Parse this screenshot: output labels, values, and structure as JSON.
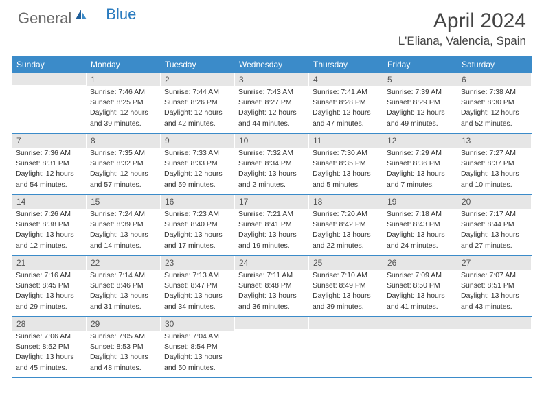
{
  "brand": {
    "part1": "General",
    "part2": "Blue"
  },
  "title": "April 2024",
  "location": "L'Eliana, Valencia, Spain",
  "colors": {
    "header_bg": "#3b8bc9",
    "header_fg": "#ffffff",
    "daynum_bg": "#e6e6e6",
    "daynum_fg": "#555555",
    "text": "#333333",
    "brand_gray": "#6a6a6a",
    "brand_blue": "#2a7bbf",
    "border": "#3b8bc9"
  },
  "typography": {
    "month_title_size": 30,
    "location_size": 17,
    "dow_size": 12,
    "daynum_size": 12,
    "info_size": 10.5
  },
  "dow": [
    "Sunday",
    "Monday",
    "Tuesday",
    "Wednesday",
    "Thursday",
    "Friday",
    "Saturday"
  ],
  "weeks": [
    [
      {
        "n": "",
        "lines": [
          "",
          "",
          "",
          ""
        ]
      },
      {
        "n": "1",
        "lines": [
          "Sunrise: 7:46 AM",
          "Sunset: 8:25 PM",
          "Daylight: 12 hours",
          "and 39 minutes."
        ]
      },
      {
        "n": "2",
        "lines": [
          "Sunrise: 7:44 AM",
          "Sunset: 8:26 PM",
          "Daylight: 12 hours",
          "and 42 minutes."
        ]
      },
      {
        "n": "3",
        "lines": [
          "Sunrise: 7:43 AM",
          "Sunset: 8:27 PM",
          "Daylight: 12 hours",
          "and 44 minutes."
        ]
      },
      {
        "n": "4",
        "lines": [
          "Sunrise: 7:41 AM",
          "Sunset: 8:28 PM",
          "Daylight: 12 hours",
          "and 47 minutes."
        ]
      },
      {
        "n": "5",
        "lines": [
          "Sunrise: 7:39 AM",
          "Sunset: 8:29 PM",
          "Daylight: 12 hours",
          "and 49 minutes."
        ]
      },
      {
        "n": "6",
        "lines": [
          "Sunrise: 7:38 AM",
          "Sunset: 8:30 PM",
          "Daylight: 12 hours",
          "and 52 minutes."
        ]
      }
    ],
    [
      {
        "n": "7",
        "lines": [
          "Sunrise: 7:36 AM",
          "Sunset: 8:31 PM",
          "Daylight: 12 hours",
          "and 54 minutes."
        ]
      },
      {
        "n": "8",
        "lines": [
          "Sunrise: 7:35 AM",
          "Sunset: 8:32 PM",
          "Daylight: 12 hours",
          "and 57 minutes."
        ]
      },
      {
        "n": "9",
        "lines": [
          "Sunrise: 7:33 AM",
          "Sunset: 8:33 PM",
          "Daylight: 12 hours",
          "and 59 minutes."
        ]
      },
      {
        "n": "10",
        "lines": [
          "Sunrise: 7:32 AM",
          "Sunset: 8:34 PM",
          "Daylight: 13 hours",
          "and 2 minutes."
        ]
      },
      {
        "n": "11",
        "lines": [
          "Sunrise: 7:30 AM",
          "Sunset: 8:35 PM",
          "Daylight: 13 hours",
          "and 5 minutes."
        ]
      },
      {
        "n": "12",
        "lines": [
          "Sunrise: 7:29 AM",
          "Sunset: 8:36 PM",
          "Daylight: 13 hours",
          "and 7 minutes."
        ]
      },
      {
        "n": "13",
        "lines": [
          "Sunrise: 7:27 AM",
          "Sunset: 8:37 PM",
          "Daylight: 13 hours",
          "and 10 minutes."
        ]
      }
    ],
    [
      {
        "n": "14",
        "lines": [
          "Sunrise: 7:26 AM",
          "Sunset: 8:38 PM",
          "Daylight: 13 hours",
          "and 12 minutes."
        ]
      },
      {
        "n": "15",
        "lines": [
          "Sunrise: 7:24 AM",
          "Sunset: 8:39 PM",
          "Daylight: 13 hours",
          "and 14 minutes."
        ]
      },
      {
        "n": "16",
        "lines": [
          "Sunrise: 7:23 AM",
          "Sunset: 8:40 PM",
          "Daylight: 13 hours",
          "and 17 minutes."
        ]
      },
      {
        "n": "17",
        "lines": [
          "Sunrise: 7:21 AM",
          "Sunset: 8:41 PM",
          "Daylight: 13 hours",
          "and 19 minutes."
        ]
      },
      {
        "n": "18",
        "lines": [
          "Sunrise: 7:20 AM",
          "Sunset: 8:42 PM",
          "Daylight: 13 hours",
          "and 22 minutes."
        ]
      },
      {
        "n": "19",
        "lines": [
          "Sunrise: 7:18 AM",
          "Sunset: 8:43 PM",
          "Daylight: 13 hours",
          "and 24 minutes."
        ]
      },
      {
        "n": "20",
        "lines": [
          "Sunrise: 7:17 AM",
          "Sunset: 8:44 PM",
          "Daylight: 13 hours",
          "and 27 minutes."
        ]
      }
    ],
    [
      {
        "n": "21",
        "lines": [
          "Sunrise: 7:16 AM",
          "Sunset: 8:45 PM",
          "Daylight: 13 hours",
          "and 29 minutes."
        ]
      },
      {
        "n": "22",
        "lines": [
          "Sunrise: 7:14 AM",
          "Sunset: 8:46 PM",
          "Daylight: 13 hours",
          "and 31 minutes."
        ]
      },
      {
        "n": "23",
        "lines": [
          "Sunrise: 7:13 AM",
          "Sunset: 8:47 PM",
          "Daylight: 13 hours",
          "and 34 minutes."
        ]
      },
      {
        "n": "24",
        "lines": [
          "Sunrise: 7:11 AM",
          "Sunset: 8:48 PM",
          "Daylight: 13 hours",
          "and 36 minutes."
        ]
      },
      {
        "n": "25",
        "lines": [
          "Sunrise: 7:10 AM",
          "Sunset: 8:49 PM",
          "Daylight: 13 hours",
          "and 39 minutes."
        ]
      },
      {
        "n": "26",
        "lines": [
          "Sunrise: 7:09 AM",
          "Sunset: 8:50 PM",
          "Daylight: 13 hours",
          "and 41 minutes."
        ]
      },
      {
        "n": "27",
        "lines": [
          "Sunrise: 7:07 AM",
          "Sunset: 8:51 PM",
          "Daylight: 13 hours",
          "and 43 minutes."
        ]
      }
    ],
    [
      {
        "n": "28",
        "lines": [
          "Sunrise: 7:06 AM",
          "Sunset: 8:52 PM",
          "Daylight: 13 hours",
          "and 45 minutes."
        ]
      },
      {
        "n": "29",
        "lines": [
          "Sunrise: 7:05 AM",
          "Sunset: 8:53 PM",
          "Daylight: 13 hours",
          "and 48 minutes."
        ]
      },
      {
        "n": "30",
        "lines": [
          "Sunrise: 7:04 AM",
          "Sunset: 8:54 PM",
          "Daylight: 13 hours",
          "and 50 minutes."
        ]
      },
      {
        "n": "",
        "lines": [
          "",
          "",
          "",
          ""
        ]
      },
      {
        "n": "",
        "lines": [
          "",
          "",
          "",
          ""
        ]
      },
      {
        "n": "",
        "lines": [
          "",
          "",
          "",
          ""
        ]
      },
      {
        "n": "",
        "lines": [
          "",
          "",
          "",
          ""
        ]
      }
    ]
  ]
}
